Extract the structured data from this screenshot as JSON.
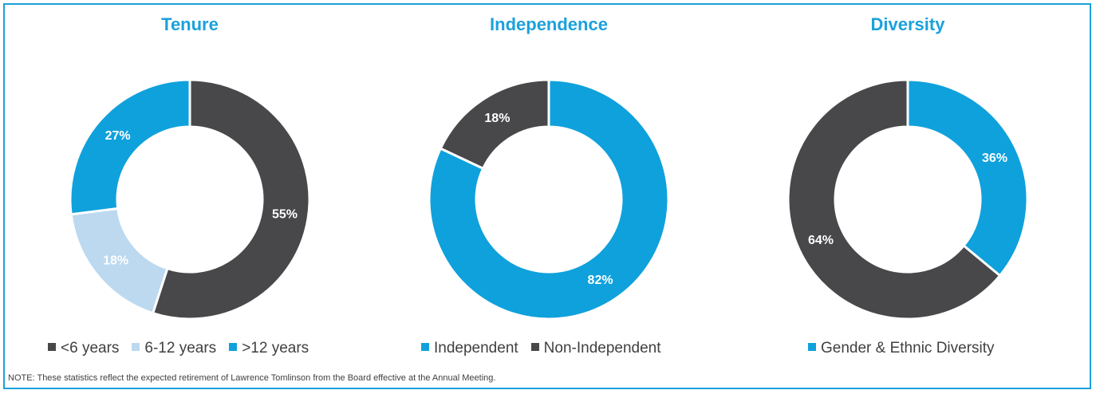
{
  "chart_data": [
    {
      "type": "pie",
      "title": "Tenure",
      "slices": [
        {
          "label": "<6 years",
          "value": 55,
          "display": "55%",
          "color": "#48484a",
          "text_color": "#ffffff"
        },
        {
          "label": "6-12 years",
          "value": 18,
          "display": "18%",
          "color": "#bcd9f0",
          "text_color": "#ffffff"
        },
        {
          "label": ">12 years",
          "value": 27,
          "display": "27%",
          "color": "#0fa1dc",
          "text_color": "#ffffff"
        }
      ],
      "legend": [
        "<6 years",
        "6-12 years",
        ">12 years"
      ],
      "legend_placement": "bottom"
    },
    {
      "type": "pie",
      "title": "Independence",
      "slices": [
        {
          "label": "Independent",
          "value": 82,
          "display": "82%",
          "color": "#0fa1dc",
          "text_color": "#ffffff"
        },
        {
          "label": "Non-Independent",
          "value": 18,
          "display": "18%",
          "color": "#48484a",
          "text_color": "#ffffff"
        }
      ],
      "legend": [
        "Independent",
        "Non-Independent"
      ],
      "legend_placement": "bottom"
    },
    {
      "type": "pie",
      "title": "Diversity",
      "slices": [
        {
          "label": "Gender & Ethnic Diversity",
          "value": 36,
          "display": "36%",
          "color": "#0fa1dc",
          "text_color": "#ffffff"
        },
        {
          "label": "",
          "value": 64,
          "display": "64%",
          "color": "#48484a",
          "text_color": "#ffffff"
        }
      ],
      "legend": [
        "Gender & Ethnic Diversity"
      ],
      "legend_placement": "bottom"
    }
  ],
  "note": "NOTE: These statistics reflect the expected retirement of Lawrence Tomlinson from the Board effective at the Annual Meeting."
}
